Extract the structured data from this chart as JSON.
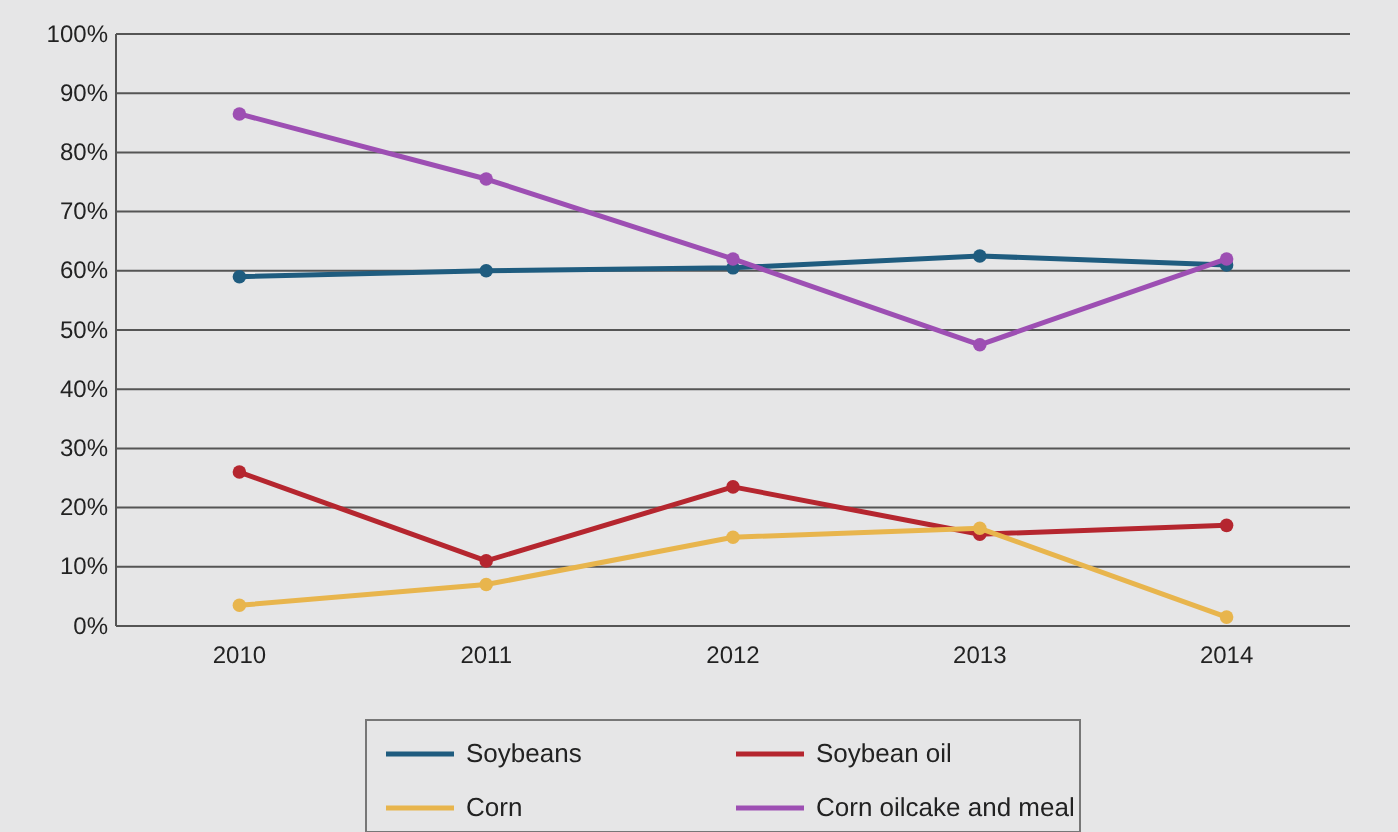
{
  "chart_data": {
    "type": "line",
    "categories": [
      "2010",
      "2011",
      "2012",
      "2013",
      "2014"
    ],
    "series": [
      {
        "name": "Soybeans",
        "color": "#1f5c7f",
        "values": [
          59,
          60,
          60.5,
          62.5,
          61
        ]
      },
      {
        "name": "Soybean oil",
        "color": "#b5262f",
        "values": [
          26,
          11,
          23.5,
          15.5,
          17
        ]
      },
      {
        "name": "Corn",
        "color": "#e8b54d",
        "values": [
          3.5,
          7,
          15,
          16.5,
          1.5
        ]
      },
      {
        "name": "Corn oilcake and meal",
        "color": "#9d4fb3",
        "values": [
          86.5,
          75.5,
          62,
          47.5,
          62
        ]
      }
    ],
    "ylim": [
      0,
      100
    ],
    "yticks": [
      {
        "value": 0,
        "label": "0%"
      },
      {
        "value": 10,
        "label": "10%"
      },
      {
        "value": 20,
        "label": "20%"
      },
      {
        "value": 30,
        "label": "30%"
      },
      {
        "value": 40,
        "label": "40%"
      },
      {
        "value": 50,
        "label": "50%"
      },
      {
        "value": 60,
        "label": "60%"
      },
      {
        "value": 70,
        "label": "70%"
      },
      {
        "value": 80,
        "label": "80%"
      },
      {
        "value": 90,
        "label": "90%"
      },
      {
        "value": 100,
        "label": "100%"
      }
    ],
    "grid": "y",
    "legend": "bottom",
    "marker": "circle",
    "line_style": "solid"
  }
}
